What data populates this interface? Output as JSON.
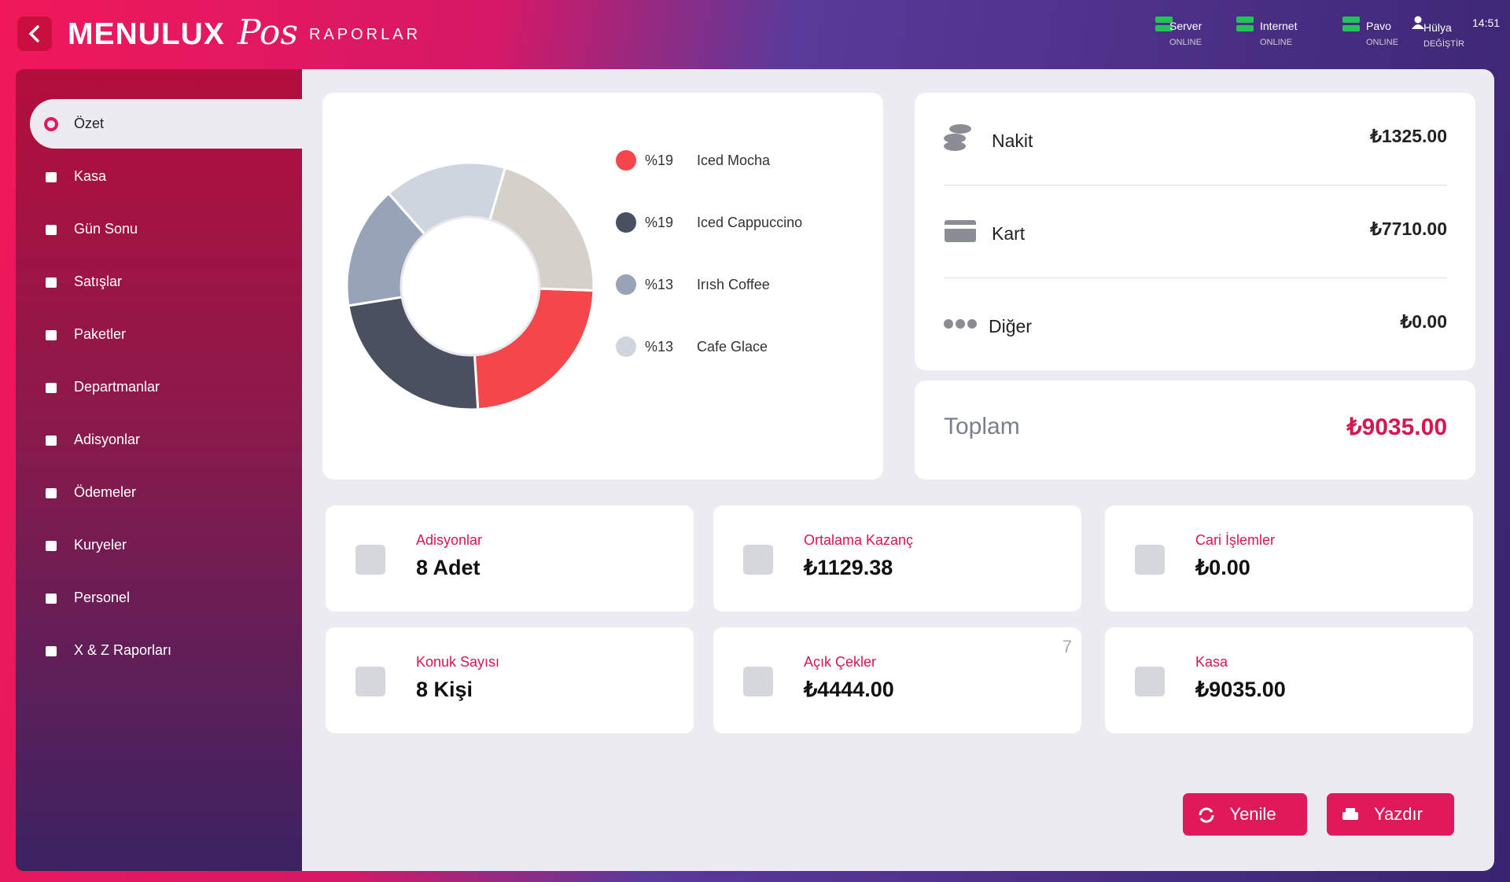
{
  "header": {
    "brand": "MENULUX",
    "brand_script": "Pos",
    "section": "RAPORLAR",
    "status": [
      {
        "label": "Server",
        "state": "ONLINE"
      },
      {
        "label": "Internet",
        "state": "ONLINE"
      },
      {
        "label": "Pavo",
        "state": "ONLINE"
      }
    ],
    "user": {
      "name": "Hülya",
      "action": "DEĞİŞTİR"
    },
    "time": "14:51"
  },
  "menu": [
    "Özet",
    "Kasa",
    "Gün Sonu",
    "Satışlar",
    "Paketler",
    "Departmanlar",
    "Adisyonlar",
    "Ödemeler",
    "Kuryeler",
    "Personel",
    "X & Z Raporları"
  ],
  "chart_data": {
    "type": "pie",
    "categories": [
      "Iced Mocha",
      "Iced Cappuccino",
      "Irısh Coffee",
      "Cafe Glace",
      null
    ],
    "values": [
      19,
      19,
      13,
      13,
      17
    ],
    "value_labels": [
      "%19",
      "%19",
      "%13",
      "%13",
      null
    ],
    "colors": [
      "#f5474b",
      "#4a5060",
      "#97a3b6",
      "#cfd5de",
      "#d6d0cb"
    ]
  },
  "payments": [
    {
      "label": "Nakit",
      "amount": "₺1325.00"
    },
    {
      "label": "Kart",
      "amount": "₺7710.00"
    },
    {
      "label": "Diğer",
      "amount": "₺0.00"
    }
  ],
  "total": {
    "label": "Toplam",
    "amount": "₺9035.00"
  },
  "cards": [
    {
      "label": "Adisyonlar",
      "value": "8  Adet"
    },
    {
      "label": "Ortalama Kazanç",
      "value": "₺1129.38"
    },
    {
      "label": "Cari İşlemler",
      "value": "₺0.00"
    },
    {
      "label": "Konuk Sayısı",
      "value": "8  Kişi"
    },
    {
      "label": "Açık Çekler",
      "value": "₺4444.00",
      "badge": "7"
    },
    {
      "label": "Kasa",
      "value": "₺9035.00"
    }
  ],
  "buttons": [
    "Yenile",
    "Yazdır"
  ]
}
